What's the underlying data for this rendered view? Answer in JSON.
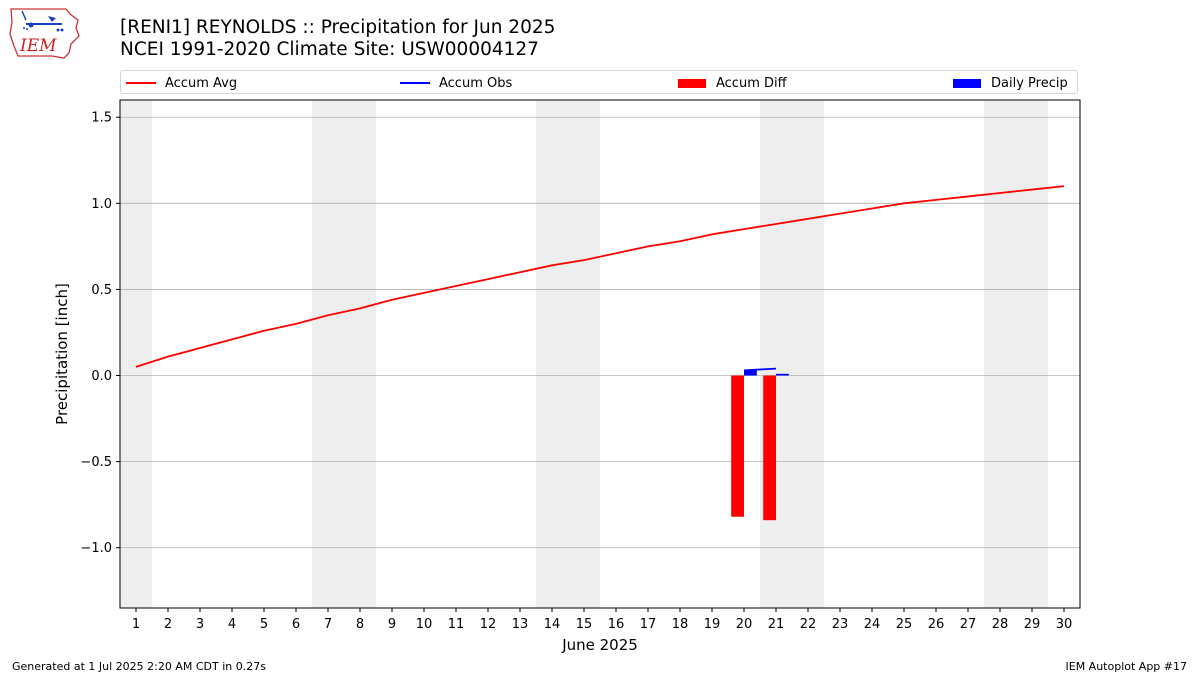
{
  "header": {
    "title_line1": "[RENI1] REYNOLDS :: Precipitation for Jun 2025",
    "title_line2": "NCEI 1991-2020 Climate Site: USW00004127",
    "logo_text": "IEM"
  },
  "footer": {
    "generated": "Generated at 1 Jul 2025 2:20 AM CDT in 0.27s",
    "app": "IEM Autoplot App #17"
  },
  "colors": {
    "accum_avg": "#ff0000",
    "accum_obs": "#0000ff",
    "accum_diff": "#ff0000",
    "daily_precip": "#0000ff",
    "weekend_band": "#eeeeee",
    "grid": "#b0b0b0"
  },
  "chart_data": {
    "type": "line",
    "xlabel": "June 2025",
    "ylabel": "Precipitation [inch]",
    "xlim": [
      0.5,
      30.5
    ],
    "ylim": [
      -1.35,
      1.6
    ],
    "yticks": [
      -1.0,
      -0.5,
      0.0,
      0.5,
      1.0,
      1.5
    ],
    "ytick_labels": [
      "−1.0",
      "−0.5",
      "0.0",
      "0.5",
      "1.0",
      "1.5"
    ],
    "x": [
      1,
      2,
      3,
      4,
      5,
      6,
      7,
      8,
      9,
      10,
      11,
      12,
      13,
      14,
      15,
      16,
      17,
      18,
      19,
      20,
      21,
      22,
      23,
      24,
      25,
      26,
      27,
      28,
      29,
      30
    ],
    "xtick_labels": [
      "1",
      "2",
      "3",
      "4",
      "5",
      "6",
      "7",
      "8",
      "9",
      "10",
      "11",
      "12",
      "13",
      "14",
      "15",
      "16",
      "17",
      "18",
      "19",
      "20",
      "21",
      "22",
      "23",
      "24",
      "25",
      "26",
      "27",
      "28",
      "29",
      "30"
    ],
    "grid": "horizontal",
    "legend_position": "top",
    "weekend_bands": [
      [
        0.5,
        1.5
      ],
      [
        6.5,
        8.5
      ],
      [
        13.5,
        15.5
      ],
      [
        20.5,
        22.5
      ],
      [
        27.5,
        29.5
      ]
    ],
    "series": [
      {
        "name": "Accum Avg",
        "kind": "line",
        "x": [
          1,
          2,
          3,
          4,
          5,
          6,
          7,
          8,
          9,
          10,
          11,
          12,
          13,
          14,
          15,
          16,
          17,
          18,
          19,
          20,
          21,
          22,
          23,
          24,
          25,
          26,
          27,
          28,
          29,
          30
        ],
        "values": [
          0.05,
          0.11,
          0.16,
          0.21,
          0.26,
          0.3,
          0.35,
          0.39,
          0.44,
          0.48,
          0.52,
          0.56,
          0.6,
          0.64,
          0.67,
          0.71,
          0.75,
          0.78,
          0.82,
          0.85,
          0.88,
          0.91,
          0.94,
          0.97,
          1.0,
          1.02,
          1.04,
          1.06,
          1.08,
          1.1
        ]
      },
      {
        "name": "Accum Obs",
        "kind": "line",
        "x": [
          20,
          21
        ],
        "values": [
          0.03,
          0.04
        ]
      },
      {
        "name": "Accum Diff",
        "kind": "bar",
        "x": [
          20,
          21
        ],
        "values": [
          -0.82,
          -0.84
        ]
      },
      {
        "name": "Daily Precip",
        "kind": "bar",
        "x": [
          20,
          21
        ],
        "values": [
          0.03,
          0.01
        ]
      }
    ]
  }
}
